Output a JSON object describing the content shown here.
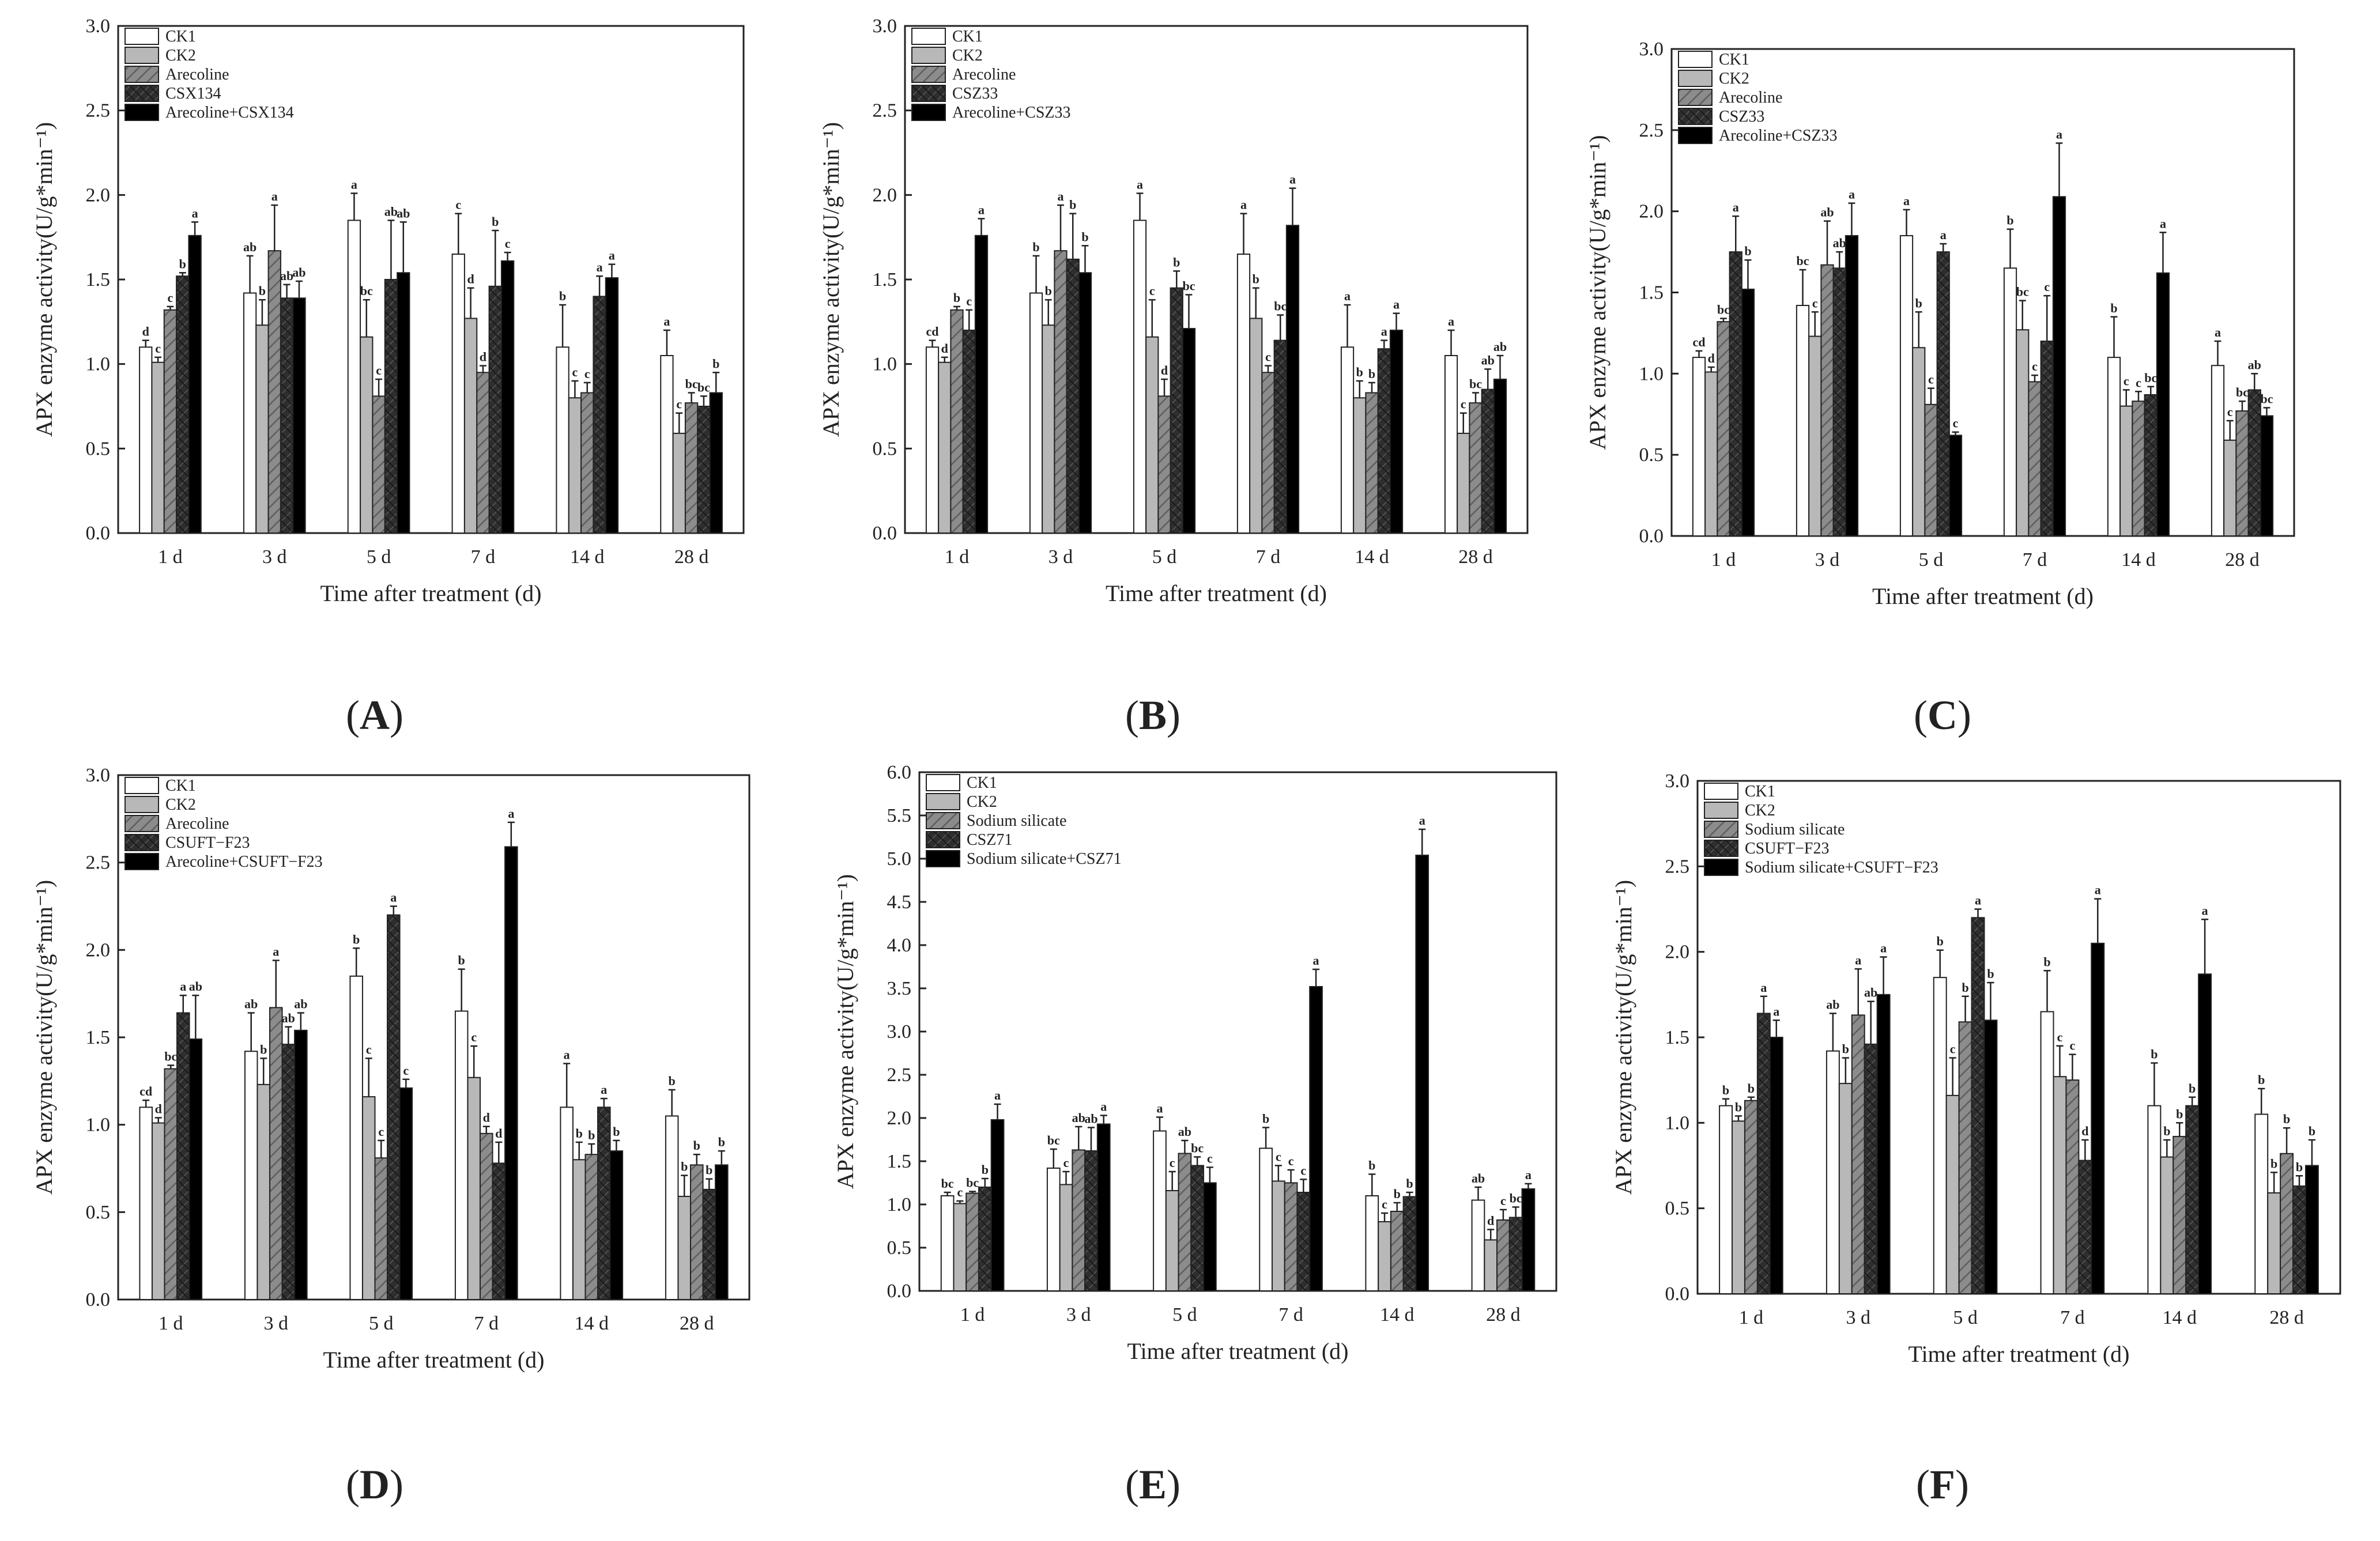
{
  "figure": {
    "colors": {
      "CK1": "#ffffff",
      "CK2": "#b8b8b8",
      "treat": "#7a7a7a",
      "strain": "#3a3a3a",
      "combo": "#000000"
    }
  },
  "chart_data": [
    {
      "panel": "(A)",
      "type": "bar",
      "xlabel": "Time after treatment (d)",
      "ylabel": "APX enzyme activity(U/g*min⁻¹)",
      "ylim": [
        0,
        3
      ],
      "yticks": [
        "0.0",
        "0.5",
        "1.0",
        "1.5",
        "2.0",
        "2.5",
        "3.0"
      ],
      "ytick_values": [
        0,
        0.5,
        1,
        1.5,
        2,
        2.5,
        3
      ],
      "categories": [
        "1 d",
        "3 d",
        "5 d",
        "7 d",
        "14 d",
        "28 d"
      ],
      "legend_position": "top-left",
      "series": [
        {
          "name": "CK1",
          "values": [
            1.1,
            1.42,
            1.85,
            1.65,
            1.1,
            1.05
          ],
          "errors": [
            0.04,
            0.22,
            0.16,
            0.24,
            0.25,
            0.15
          ],
          "letters": [
            "d",
            "ab",
            "a",
            "c",
            "b",
            "a"
          ]
        },
        {
          "name": "CK2",
          "values": [
            1.01,
            1.23,
            1.16,
            1.27,
            0.8,
            0.59
          ],
          "errors": [
            0.03,
            0.15,
            0.22,
            0.18,
            0.1,
            0.12
          ],
          "letters": [
            "c",
            "b",
            "bc",
            "d",
            "c",
            "c"
          ]
        },
        {
          "name": "Arecoline",
          "values": [
            1.32,
            1.67,
            0.81,
            0.95,
            0.83,
            0.77
          ],
          "errors": [
            0.02,
            0.27,
            0.1,
            0.04,
            0.06,
            0.06
          ],
          "letters": [
            "c",
            "a",
            "c",
            "d",
            "c",
            "bc"
          ]
        },
        {
          "name": "CSX134",
          "values": [
            1.52,
            1.39,
            1.5,
            1.46,
            1.4,
            0.75
          ],
          "errors": [
            0.02,
            0.08,
            0.35,
            0.33,
            0.12,
            0.06
          ],
          "letters": [
            "b",
            "ab",
            "ab",
            "b",
            "a",
            "bc"
          ]
        },
        {
          "name": "Arecoline+CSX134",
          "values": [
            1.76,
            1.39,
            1.54,
            1.61,
            1.51,
            0.83
          ],
          "errors": [
            0.08,
            0.1,
            0.3,
            0.05,
            0.08,
            0.12
          ],
          "letters": [
            "a",
            "ab",
            "ab",
            "c",
            "a",
            "b"
          ]
        }
      ]
    },
    {
      "panel": "(B)",
      "type": "bar",
      "xlabel": "Time after treatment (d)",
      "ylabel": "APX enzyme activity(U/g*min⁻¹)",
      "ylim": [
        0,
        3
      ],
      "yticks": [
        "0.0",
        "0.5",
        "1.0",
        "1.5",
        "2.0",
        "2.5",
        "3.0"
      ],
      "ytick_values": [
        0,
        0.5,
        1,
        1.5,
        2,
        2.5,
        3
      ],
      "categories": [
        "1 d",
        "3 d",
        "5 d",
        "7 d",
        "14 d",
        "28 d"
      ],
      "legend_position": "top-left",
      "series": [
        {
          "name": "CK1",
          "values": [
            1.1,
            1.42,
            1.85,
            1.65,
            1.1,
            1.05
          ],
          "errors": [
            0.04,
            0.22,
            0.16,
            0.24,
            0.25,
            0.15
          ],
          "letters": [
            "cd",
            "b",
            "a",
            "a",
            "a",
            "a"
          ]
        },
        {
          "name": "CK2",
          "values": [
            1.01,
            1.23,
            1.16,
            1.27,
            0.8,
            0.59
          ],
          "errors": [
            0.03,
            0.15,
            0.22,
            0.18,
            0.1,
            0.12
          ],
          "letters": [
            "d",
            "b",
            "c",
            "b",
            "b",
            "c"
          ]
        },
        {
          "name": "Arecoline",
          "values": [
            1.32,
            1.67,
            0.81,
            0.95,
            0.83,
            0.77
          ],
          "errors": [
            0.02,
            0.27,
            0.1,
            0.04,
            0.06,
            0.06
          ],
          "letters": [
            "b",
            "a",
            "d",
            "c",
            "b",
            "bc"
          ]
        },
        {
          "name": "CSZ33",
          "values": [
            1.2,
            1.62,
            1.45,
            1.14,
            1.09,
            0.85
          ],
          "errors": [
            0.12,
            0.27,
            0.1,
            0.15,
            0.05,
            0.12
          ],
          "letters": [
            "c",
            "b",
            "b",
            "bc",
            "a",
            "ab"
          ]
        },
        {
          "name": "Arecoline+CSZ33",
          "values": [
            1.76,
            1.54,
            1.21,
            1.82,
            1.2,
            0.91
          ],
          "errors": [
            0.1,
            0.16,
            0.2,
            0.22,
            0.1,
            0.14
          ],
          "letters": [
            "a",
            "b",
            "bc",
            "a",
            "a",
            "ab"
          ]
        }
      ]
    },
    {
      "panel": "(C)",
      "type": "bar",
      "xlabel": "Time after treatment (d)",
      "ylabel": "APX enzyme activity(U/g*min⁻¹)",
      "ylim": [
        0,
        3
      ],
      "yticks": [
        "0.0",
        "0.5",
        "1.0",
        "1.5",
        "2.0",
        "2.5",
        "3.0"
      ],
      "ytick_values": [
        0,
        0.5,
        1,
        1.5,
        2,
        2.5,
        3
      ],
      "categories": [
        "1 d",
        "3 d",
        "5 d",
        "7 d",
        "14 d",
        "28 d"
      ],
      "legend_position": "top-left",
      "series": [
        {
          "name": "CK1",
          "values": [
            1.1,
            1.42,
            1.85,
            1.65,
            1.1,
            1.05
          ],
          "errors": [
            0.04,
            0.22,
            0.16,
            0.24,
            0.25,
            0.15
          ],
          "letters": [
            "cd",
            "bc",
            "a",
            "b",
            "b",
            "a"
          ]
        },
        {
          "name": "CK2",
          "values": [
            1.01,
            1.23,
            1.16,
            1.27,
            0.8,
            0.59
          ],
          "errors": [
            0.03,
            0.15,
            0.22,
            0.18,
            0.1,
            0.12
          ],
          "letters": [
            "d",
            "c",
            "b",
            "bc",
            "c",
            "c"
          ]
        },
        {
          "name": "Arecoline",
          "values": [
            1.32,
            1.67,
            0.81,
            0.95,
            0.83,
            0.77
          ],
          "errors": [
            0.02,
            0.27,
            0.1,
            0.04,
            0.06,
            0.06
          ],
          "letters": [
            "bc",
            "ab",
            "c",
            "c",
            "c",
            "bc"
          ]
        },
        {
          "name": "CSZ33",
          "values": [
            1.75,
            1.65,
            1.75,
            1.2,
            0.87,
            0.9
          ],
          "errors": [
            0.22,
            0.1,
            0.05,
            0.28,
            0.05,
            0.1
          ],
          "letters": [
            "a",
            "ab",
            "a",
            "c",
            "bc",
            "ab"
          ]
        },
        {
          "name": "Arecoline+CSZ33",
          "values": [
            1.52,
            1.85,
            0.62,
            2.09,
            1.62,
            0.74
          ],
          "errors": [
            0.18,
            0.2,
            0.02,
            0.33,
            0.25,
            0.05
          ],
          "letters": [
            "b",
            "a",
            "c",
            "a",
            "a",
            "bc"
          ]
        }
      ]
    },
    {
      "panel": "(D)",
      "type": "bar",
      "xlabel": "Time after treatment (d)",
      "ylabel": "APX enzyme activity(U/g*min⁻¹)",
      "ylim": [
        0,
        3
      ],
      "yticks": [
        "0.0",
        "0.5",
        "1.0",
        "1.5",
        "2.0",
        "2.5",
        "3.0"
      ],
      "ytick_values": [
        0,
        0.5,
        1,
        1.5,
        2,
        2.5,
        3
      ],
      "categories": [
        "1 d",
        "3 d",
        "5 d",
        "7 d",
        "14 d",
        "28 d"
      ],
      "legend_position": "top-left",
      "series": [
        {
          "name": "CK1",
          "values": [
            1.1,
            1.42,
            1.85,
            1.65,
            1.1,
            1.05
          ],
          "errors": [
            0.04,
            0.22,
            0.16,
            0.24,
            0.25,
            0.15
          ],
          "letters": [
            "cd",
            "ab",
            "b",
            "b",
            "a",
            "b"
          ]
        },
        {
          "name": "CK2",
          "values": [
            1.01,
            1.23,
            1.16,
            1.27,
            0.8,
            0.59
          ],
          "errors": [
            0.03,
            0.15,
            0.22,
            0.18,
            0.1,
            0.12
          ],
          "letters": [
            "d",
            "b",
            "c",
            "c",
            "b",
            "b"
          ]
        },
        {
          "name": "Arecoline",
          "values": [
            1.32,
            1.67,
            0.81,
            0.95,
            0.83,
            0.77
          ],
          "errors": [
            0.02,
            0.27,
            0.1,
            0.04,
            0.06,
            0.06
          ],
          "letters": [
            "bc",
            "a",
            "c",
            "d",
            "b",
            "b"
          ]
        },
        {
          "name": "CSUFT−F23",
          "values": [
            1.64,
            1.46,
            2.2,
            0.78,
            1.1,
            0.63
          ],
          "errors": [
            0.1,
            0.1,
            0.05,
            0.12,
            0.05,
            0.06
          ],
          "letters": [
            "a",
            "ab",
            "a",
            "d",
            "a",
            "b"
          ]
        },
        {
          "name": "Arecoline+CSUFT−F23",
          "values": [
            1.49,
            1.54,
            1.21,
            2.59,
            0.85,
            0.77
          ],
          "errors": [
            0.25,
            0.1,
            0.05,
            0.14,
            0.06,
            0.08
          ],
          "letters": [
            "ab",
            "ab",
            "c",
            "a",
            "b",
            "b"
          ]
        }
      ]
    },
    {
      "panel": "(E)",
      "type": "bar",
      "xlabel": "Time after treatment (d)",
      "ylabel": "APX enzyme activity(U/g*min⁻¹)",
      "ylim": [
        0,
        6
      ],
      "yticks": [
        "0.0",
        "0.5",
        "1.0",
        "1.5",
        "2.0",
        "2.5",
        "3.0",
        "3.5",
        "4.0",
        "4.5",
        "5.0",
        "5.5",
        "6.0"
      ],
      "ytick_values": [
        0,
        0.5,
        1,
        1.5,
        2,
        2.5,
        3,
        3.5,
        4,
        4.5,
        5,
        5.5,
        6
      ],
      "categories": [
        "1 d",
        "3 d",
        "5 d",
        "7 d",
        "14 d",
        "28 d"
      ],
      "legend_position": "top-left",
      "series": [
        {
          "name": "CK1",
          "values": [
            1.1,
            1.42,
            1.85,
            1.65,
            1.1,
            1.05
          ],
          "errors": [
            0.04,
            0.22,
            0.16,
            0.24,
            0.25,
            0.15
          ],
          "letters": [
            "bc",
            "bc",
            "a",
            "b",
            "b",
            "ab"
          ]
        },
        {
          "name": "CK2",
          "values": [
            1.01,
            1.23,
            1.16,
            1.27,
            0.8,
            0.59
          ],
          "errors": [
            0.03,
            0.15,
            0.22,
            0.18,
            0.1,
            0.12
          ],
          "letters": [
            "c",
            "c",
            "c",
            "c",
            "c",
            "d"
          ]
        },
        {
          "name": "Sodium silicate",
          "values": [
            1.13,
            1.63,
            1.59,
            1.25,
            0.92,
            0.82
          ],
          "errors": [
            0.02,
            0.27,
            0.15,
            0.15,
            0.1,
            0.12
          ],
          "letters": [
            "bc",
            "ab",
            "ab",
            "c",
            "b",
            "c"
          ]
        },
        {
          "name": "CSZ71",
          "values": [
            1.2,
            1.62,
            1.45,
            1.14,
            1.09,
            0.85
          ],
          "errors": [
            0.1,
            0.27,
            0.1,
            0.15,
            0.05,
            0.12
          ],
          "letters": [
            "b",
            "ab",
            "bc",
            "c",
            "b",
            "bc"
          ]
        },
        {
          "name": "Sodium silicate+CSZ71",
          "values": [
            1.98,
            1.93,
            1.25,
            3.52,
            5.04,
            1.18
          ],
          "errors": [
            0.18,
            0.1,
            0.18,
            0.2,
            0.3,
            0.06
          ],
          "letters": [
            "a",
            "a",
            "c",
            "a",
            "a",
            "a"
          ]
        }
      ]
    },
    {
      "panel": "(F)",
      "type": "bar",
      "xlabel": "Time after treatment (d)",
      "ylabel": "APX enzyme activity(U/g*min⁻¹)",
      "ylim": [
        0,
        3
      ],
      "yticks": [
        "0.0",
        "0.5",
        "1.0",
        "1.5",
        "2.0",
        "2.5",
        "3.0"
      ],
      "ytick_values": [
        0,
        0.5,
        1,
        1.5,
        2,
        2.5,
        3
      ],
      "categories": [
        "1 d",
        "3 d",
        "5 d",
        "7 d",
        "14 d",
        "28 d"
      ],
      "legend_position": "top-left",
      "series": [
        {
          "name": "CK1",
          "values": [
            1.1,
            1.42,
            1.85,
            1.65,
            1.1,
            1.05
          ],
          "errors": [
            0.04,
            0.22,
            0.16,
            0.24,
            0.25,
            0.15
          ],
          "letters": [
            "b",
            "ab",
            "b",
            "b",
            "b",
            "b"
          ]
        },
        {
          "name": "CK2",
          "values": [
            1.01,
            1.23,
            1.16,
            1.27,
            0.8,
            0.59
          ],
          "errors": [
            0.03,
            0.15,
            0.22,
            0.18,
            0.1,
            0.12
          ],
          "letters": [
            "b",
            "b",
            "c",
            "c",
            "b",
            "b"
          ]
        },
        {
          "name": "Sodium silicate",
          "values": [
            1.13,
            1.63,
            1.59,
            1.25,
            0.92,
            0.82
          ],
          "errors": [
            0.02,
            0.27,
            0.15,
            0.15,
            0.08,
            0.15
          ],
          "letters": [
            "b",
            "a",
            "b",
            "c",
            "b",
            "b"
          ]
        },
        {
          "name": "CSUFT−F23",
          "values": [
            1.64,
            1.46,
            2.2,
            0.78,
            1.1,
            0.63
          ],
          "errors": [
            0.1,
            0.25,
            0.05,
            0.12,
            0.05,
            0.06
          ],
          "letters": [
            "a",
            "ab",
            "a",
            "d",
            "b",
            "b"
          ]
        },
        {
          "name": "Sodium silicate+CSUFT−F23",
          "values": [
            1.5,
            1.75,
            1.6,
            2.05,
            1.87,
            0.75
          ],
          "errors": [
            0.1,
            0.22,
            0.22,
            0.26,
            0.32,
            0.15
          ],
          "letters": [
            "a",
            "a",
            "b",
            "a",
            "a",
            "b"
          ]
        }
      ]
    }
  ]
}
